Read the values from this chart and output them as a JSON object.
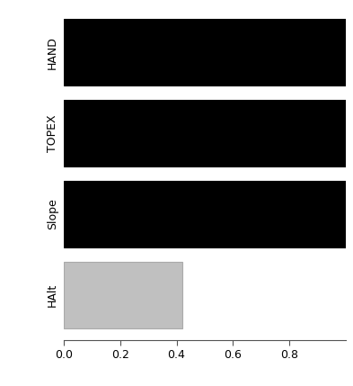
{
  "categories": [
    "HAlt",
    "Slope",
    "TOPEX",
    "HAND"
  ],
  "values": [
    0.42,
    1.0,
    1.0,
    1.0
  ],
  "bar_colors": [
    "#c0c0c0",
    "#000000",
    "#000000",
    "#000000"
  ],
  "bar_edge_colors": [
    "#aaaaaa",
    "#000000",
    "#000000",
    "#000000"
  ],
  "xlim": [
    0.0,
    1.0
  ],
  "xticks": [
    0.0,
    0.2,
    0.4,
    0.6,
    0.8
  ],
  "xtick_labels": [
    "0.0",
    "0.2",
    "0.4",
    "0.6",
    "0.8"
  ],
  "bar_height": 0.82,
  "background_color": "#ffffff",
  "tick_fontsize": 9,
  "label_fontsize": 9
}
